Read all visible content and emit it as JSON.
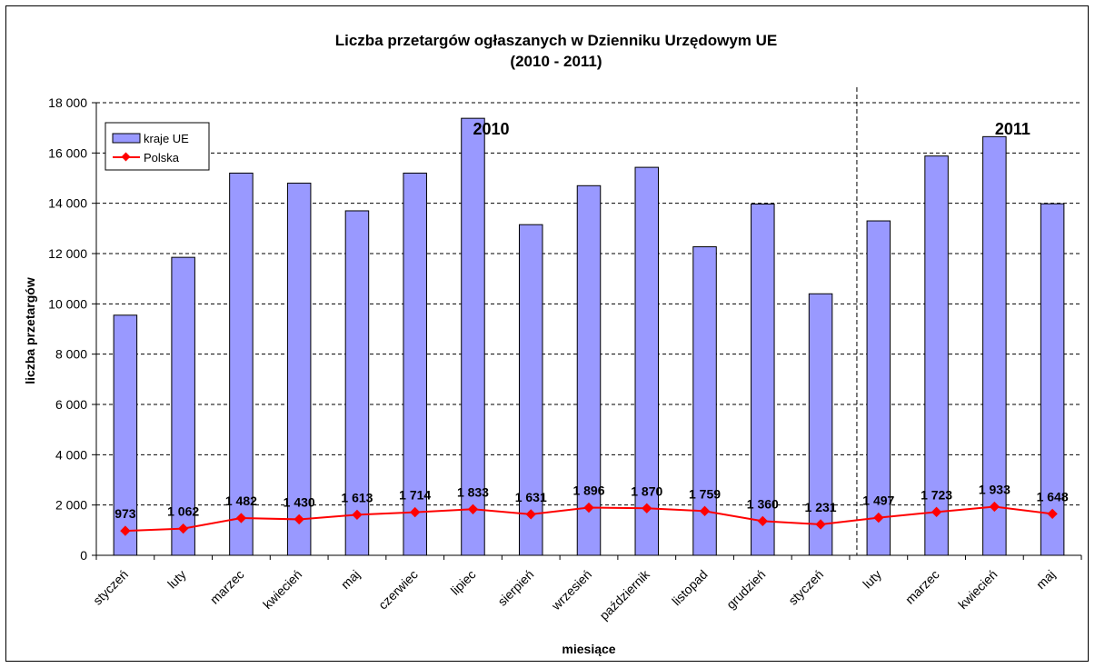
{
  "chart_data": {
    "type": "bar",
    "title": "Liczba przetargów ogłaszanych w Dzienniku Urzędowym UE",
    "subtitle": "(2010 - 2011)",
    "xlabel": "miesiące",
    "ylabel": "liczba przetargów",
    "ylim": [
      0,
      18000
    ],
    "ytick_step": 2000,
    "ytick_labels": [
      "0",
      "2 000",
      "4 000",
      "6 000",
      "8 000",
      "10 000",
      "12 000",
      "14 000",
      "16 000",
      "18 000"
    ],
    "grid": "horizontal dashed",
    "legend_position": "top-left",
    "categories": [
      "styczeń",
      "luty",
      "marzec",
      "kwiecień",
      "maj",
      "czerwiec",
      "lipiec",
      "sierpień",
      "wrzesień",
      "październik",
      "listopad",
      "grudzień",
      "styczeń",
      "luty",
      "marzec",
      "kwiecień",
      "maj"
    ],
    "series": [
      {
        "name": "kraje UE",
        "type": "bar",
        "color": "#9999ff",
        "values": [
          9550,
          11850,
          15200,
          14800,
          13700,
          15200,
          17380,
          13150,
          14700,
          15430,
          12270,
          13970,
          10400,
          13300,
          15880,
          16650,
          13980
        ]
      },
      {
        "name": "Polska",
        "type": "line",
        "color": "#ff0000",
        "values": [
          973,
          1062,
          1482,
          1430,
          1613,
          1714,
          1833,
          1631,
          1896,
          1870,
          1759,
          1360,
          1231,
          1497,
          1723,
          1933,
          1648
        ],
        "data_labels": [
          "973",
          "1 062",
          "1 482",
          "1 430",
          "1 613",
          "1 714",
          "1 833",
          "1 631",
          "1 896",
          "1 870",
          "1 759",
          "1 360",
          "1 231",
          "1 497",
          "1 723",
          "1 933",
          "1 648"
        ]
      }
    ],
    "annotations": [
      {
        "text": "2010",
        "category_index": 6
      },
      {
        "text": "2011",
        "category_index": 15
      }
    ],
    "divider_after_category_index": 12
  }
}
